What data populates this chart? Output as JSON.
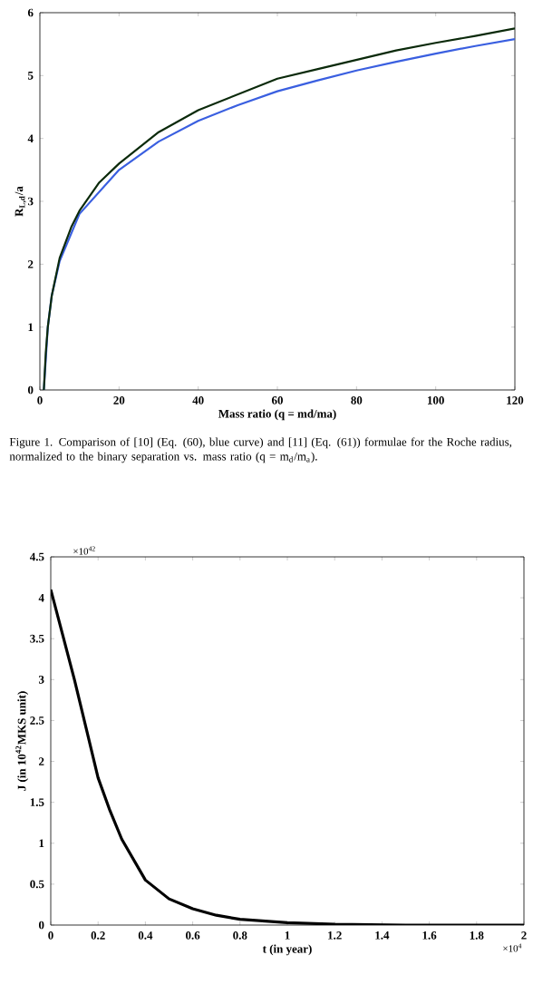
{
  "chart_data": [
    {
      "type": "line",
      "xlabel": "Mass ratio (q = md/ma)",
      "ylabel": "R$_{L,d}$/a",
      "xlim": [
        0,
        120
      ],
      "ylim": [
        0,
        6
      ],
      "xticks": [
        0,
        20,
        40,
        60,
        80,
        100,
        120
      ],
      "yticks": [
        0,
        1,
        2,
        3,
        4,
        5,
        6
      ],
      "grid": false,
      "annotations": [
        "Figure 1. Comparison of [10] (Eq. (60), blue curve) and [11] (Eq. (61)) formulae for the Roche radius, normalized to the binary separation vs. mass ratio (q = m$_{d}$/m$_{a}$)."
      ],
      "series": [
        {
          "color": "#3a5fe0",
          "x": [
            1,
            2,
            3,
            5,
            10,
            20,
            30,
            40,
            50,
            60,
            70,
            80,
            90,
            100,
            110,
            120
          ],
          "values": [
            0,
            1.0,
            1.5,
            2.05,
            2.8,
            3.5,
            3.95,
            4.28,
            4.53,
            4.75,
            4.92,
            5.08,
            5.22,
            5.35,
            5.47,
            5.58
          ]
        },
        {
          "color": "#0b2a0b",
          "x": [
            1,
            1.5,
            2,
            3,
            5,
            8,
            10,
            15,
            20,
            30,
            40,
            50,
            60,
            70,
            80,
            90,
            100,
            110,
            120
          ],
          "values": [
            0,
            0.6,
            1.0,
            1.5,
            2.1,
            2.6,
            2.85,
            3.3,
            3.6,
            4.1,
            4.45,
            4.7,
            4.95,
            5.1,
            5.25,
            5.4,
            5.52,
            5.63,
            5.75
          ]
        }
      ]
    },
    {
      "type": "line",
      "xlabel": "t (in year)",
      "ylabel": "J (in 10$^{42}$MKS unit)",
      "xlim": [
        0,
        2
      ],
      "ylim": [
        0,
        4.5
      ],
      "xticks": [
        0,
        0.2,
        0.4,
        0.6,
        0.8,
        1,
        1.2,
        1.4,
        1.6,
        1.8,
        2
      ],
      "yticks": [
        0,
        0.5,
        1,
        1.5,
        2,
        2.5,
        3,
        3.5,
        4,
        4.5
      ],
      "grid": false,
      "annotations": [
        "×10$^{42}$",
        "×10$^{4}$"
      ],
      "series": [
        {
          "color": "#000000",
          "x": [
            0,
            0.05,
            0.1,
            0.15,
            0.2,
            0.25,
            0.3,
            0.4,
            0.5,
            0.6,
            0.7,
            0.8,
            1.0,
            1.2,
            1.5,
            2
          ],
          "values": [
            4.1,
            3.55,
            3.0,
            2.4,
            1.8,
            1.4,
            1.05,
            0.55,
            0.32,
            0.2,
            0.12,
            0.07,
            0.03,
            0.01,
            0,
            0
          ]
        }
      ]
    }
  ]
}
